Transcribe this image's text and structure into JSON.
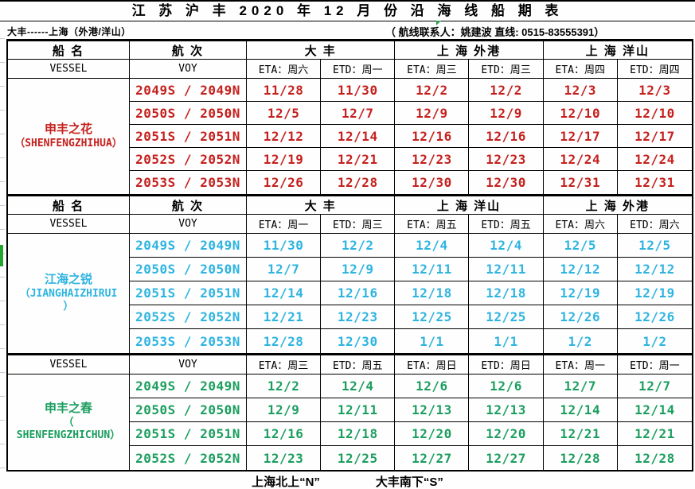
{
  "title": "江 苏 沪 丰  2020 年 12 月 份 沿 海 线 船 期 表",
  "subtitle": {
    "route": "大丰------上海（外港/洋山）",
    "contact": "（ 航线联系人：姚建波  直线: 0515-83555391）"
  },
  "footer": {
    "north_note": "上海北上“N”",
    "south_note": "大丰南下“S”"
  },
  "colors": {
    "red": "#c5201d",
    "cyan": "#2db4e0",
    "green": "#1b9e5f"
  },
  "sections": [
    {
      "color": "red",
      "cn_header": [
        {
          "label": "船  名",
          "span": 1
        },
        {
          "label": "航  次",
          "span": 1
        },
        {
          "label": "大  丰",
          "span": 2
        },
        {
          "label": "上 海 外港",
          "span": 2
        },
        {
          "label": "上 海 洋山",
          "span": 2
        }
      ],
      "en_header": [
        "VESSEL",
        "VOY",
        "ETA：周六",
        "ETD：周一",
        "ETA：周三",
        "ETD：周三",
        "ETA：周四",
        "ETD：周四"
      ],
      "vessel_lines": [
        "申丰之花",
        "（SHENFENGZHIHUA）"
      ],
      "rows": [
        {
          "voy": "2049S / 2049N",
          "dates": [
            "11/28",
            "11/30",
            "12/2",
            "12/2",
            "12/3",
            "12/3"
          ]
        },
        {
          "voy": "2050S / 2050N",
          "dates": [
            "12/5",
            "12/7",
            "12/9",
            "12/9",
            "12/10",
            "12/10"
          ]
        },
        {
          "voy": "2051S / 2051N",
          "dates": [
            "12/12",
            "12/14",
            "12/16",
            "12/16",
            "12/17",
            "12/17"
          ]
        },
        {
          "voy": "2052S / 2052N",
          "dates": [
            "12/19",
            "12/21",
            "12/23",
            "12/23",
            "12/24",
            "12/24"
          ]
        },
        {
          "voy": "2053S / 2053N",
          "dates": [
            "12/26",
            "12/28",
            "12/30",
            "12/30",
            "12/31",
            "12/31"
          ]
        }
      ]
    },
    {
      "color": "cyan",
      "cn_header": [
        {
          "label": "船  名",
          "span": 1
        },
        {
          "label": "航  次",
          "span": 1
        },
        {
          "label": "大  丰",
          "span": 2
        },
        {
          "label": "上 海 洋山",
          "span": 2
        },
        {
          "label": "上 海 外港",
          "span": 2
        }
      ],
      "en_header": [
        "VESSEL",
        "VOY",
        "ETA：周一",
        "ETD：周三",
        "ETA：周五",
        "ETD：周五",
        "ETA：周六",
        "ETD：周六"
      ],
      "vessel_lines": [
        "江海之锐",
        "（JIANGHAIZHIRUI",
        "）"
      ],
      "rows": [
        {
          "voy": "2049S / 2049N",
          "dates": [
            "11/30",
            "12/2",
            "12/4",
            "12/4",
            "12/5",
            "12/5"
          ]
        },
        {
          "voy": "2050S / 2050N",
          "dates": [
            "12/7",
            "12/9",
            "12/11",
            "12/11",
            "12/12",
            "12/12"
          ]
        },
        {
          "voy": "2051S / 2051N",
          "dates": [
            "12/14",
            "12/16",
            "12/18",
            "12/18",
            "12/19",
            "12/19"
          ]
        },
        {
          "voy": "2052S / 2052N",
          "dates": [
            "12/21",
            "12/23",
            "12/25",
            "12/25",
            "12/26",
            "12/26"
          ]
        },
        {
          "voy": "2053S / 2053N",
          "dates": [
            "12/28",
            "12/30",
            "1/1",
            "1/1",
            "1/2",
            "1/2"
          ]
        }
      ]
    },
    {
      "color": "green",
      "cn_header": [],
      "en_header": [
        "VESSEL",
        "VOY",
        "ETA：周三",
        "ETD：周五",
        "ETA：周日",
        "ETD：周日",
        "ETA：周一",
        "ETD：周一"
      ],
      "vessel_lines": [
        "申丰之春",
        "（",
        "SHENFENGZHICHUN）"
      ],
      "rows": [
        {
          "voy": "2049S / 2049N",
          "dates": [
            "12/2",
            "12/4",
            "12/6",
            "12/6",
            "12/7",
            "12/7"
          ]
        },
        {
          "voy": "2050S / 2050N",
          "dates": [
            "12/9",
            "12/11",
            "12/13",
            "12/13",
            "12/14",
            "12/14"
          ]
        },
        {
          "voy": "2051S / 2051N",
          "dates": [
            "12/16",
            "12/18",
            "12/20",
            "12/20",
            "12/21",
            "12/21"
          ]
        },
        {
          "voy": "2052S / 2052N",
          "dates": [
            "12/23",
            "12/25",
            "12/27",
            "12/27",
            "12/28",
            "12/28"
          ]
        }
      ]
    }
  ]
}
